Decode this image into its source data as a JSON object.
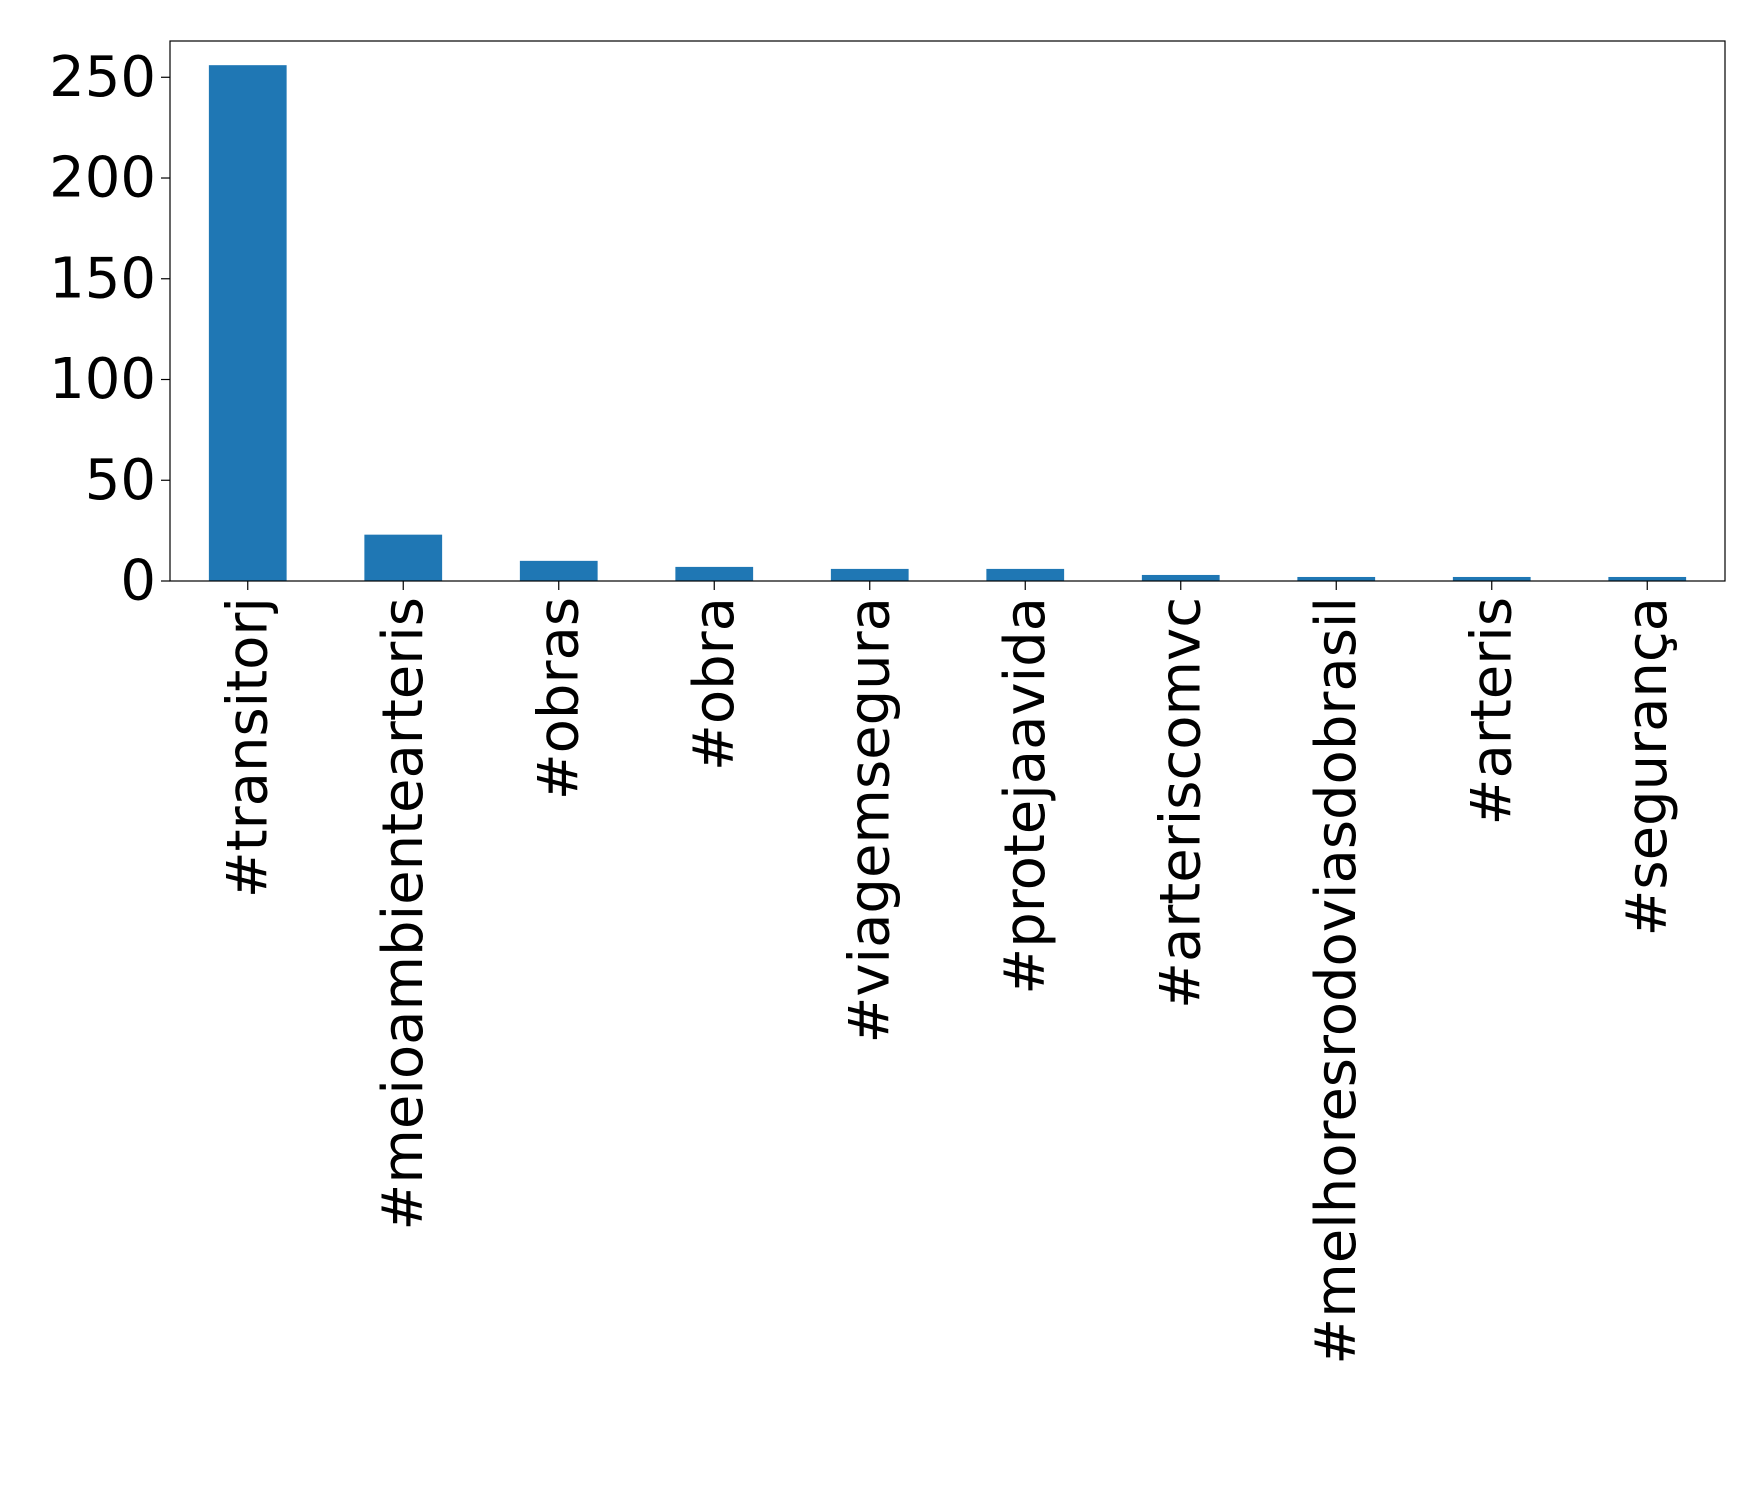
{
  "chart_data": {
    "type": "bar",
    "title": "",
    "xlabel": "",
    "ylabel": "",
    "categories": [
      "#transitorj",
      "#meioambientearteris",
      "#obras",
      "#obra",
      "#viagemsegura",
      "#protejaavida",
      "#arteriscomvc",
      "#melhoresrodoviasdobrasil",
      "#arteris",
      "#segurança"
    ],
    "values": [
      256,
      23,
      10,
      7,
      6,
      6,
      3,
      2,
      2,
      2
    ],
    "ylim": [
      0,
      268
    ],
    "yticks": [
      0,
      50,
      100,
      150,
      200,
      250
    ],
    "ytick_labels": [
      "0",
      "50",
      "100",
      "150",
      "200",
      "250"
    ],
    "bar_color": "#1f77b4",
    "grid": false,
    "legend": "none"
  }
}
